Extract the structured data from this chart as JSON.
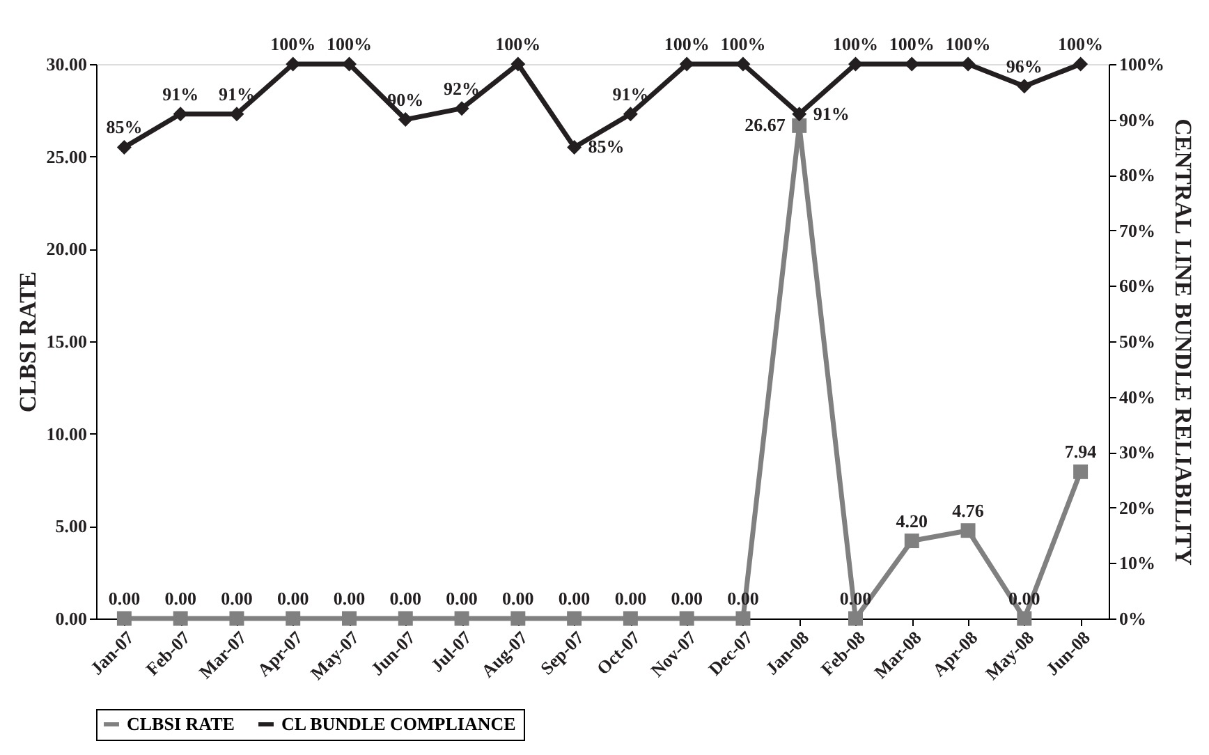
{
  "chart_data": {
    "type": "line",
    "xlabel": null,
    "ylabel": "CLBSI RATE",
    "y2label": "CENTRAL LINE BUNDLE RELIABILITY",
    "categories": [
      "Jan-07",
      "Feb-07",
      "Mar-07",
      "Apr-07",
      "May-07",
      "Jun-07",
      "Jul-07",
      "Aug-07",
      "Sep-07",
      "Oct-07",
      "Nov-07",
      "Dec-07",
      "Jan-08",
      "Feb-08",
      "Mar-08",
      "Apr-08",
      "May-08",
      "Jun-08"
    ],
    "series": [
      {
        "name": "CLBSI RATE",
        "color": "#808080",
        "marker": "square",
        "values": [
          0,
          0,
          0,
          0,
          0,
          0,
          0,
          0,
          0,
          0,
          0,
          0,
          26.67,
          0,
          4.2,
          4.76,
          0,
          7.94
        ],
        "value_labels": [
          "0.00",
          "0.00",
          "0.00",
          "0.00",
          "0.00",
          "0.00",
          "0.00",
          "0.00",
          "0.00",
          "0.00",
          "0.00",
          "0.00",
          "26.67",
          "0.00",
          "4.20",
          "4.76",
          "0.00",
          "7.94"
        ]
      },
      {
        "name": "CL BUNDLE COMPLIANCE",
        "color": "#231f20",
        "marker": "diamond",
        "axis": "y2",
        "values": [
          85,
          91,
          91,
          100,
          100,
          90,
          92,
          100,
          85,
          91,
          100,
          100,
          91,
          100,
          100,
          100,
          96,
          100
        ],
        "value_labels": [
          "85%",
          "91%",
          "91%",
          "100%",
          "100%",
          "90%",
          "92%",
          "100%",
          "85%",
          "91%",
          "100%",
          "100%",
          "91%",
          "100%",
          "100%",
          "100%",
          "96%",
          "100%"
        ]
      }
    ],
    "ylim": [
      0,
      30
    ],
    "yticks": [
      {
        "value": 0,
        "label": "0.00"
      },
      {
        "value": 5,
        "label": "5.00"
      },
      {
        "value": 10,
        "label": "10.00"
      },
      {
        "value": 15,
        "label": "15.00"
      },
      {
        "value": 20,
        "label": "20.00"
      },
      {
        "value": 25,
        "label": "25.00"
      },
      {
        "value": 30,
        "label": "30.00"
      }
    ],
    "y2lim": [
      0,
      100
    ],
    "y2ticks": [
      {
        "value": 0,
        "label": "0%"
      },
      {
        "value": 10,
        "label": "10%"
      },
      {
        "value": 20,
        "label": "20%"
      },
      {
        "value": 30,
        "label": "30%"
      },
      {
        "value": 40,
        "label": "40%"
      },
      {
        "value": 50,
        "label": "50%"
      },
      {
        "value": 60,
        "label": "60%"
      },
      {
        "value": 70,
        "label": "70%"
      },
      {
        "value": 80,
        "label": "80%"
      },
      {
        "value": 90,
        "label": "90%"
      },
      {
        "value": 100,
        "label": "100%"
      }
    ],
    "grid": false,
    "legend": "bottom",
    "line_style": "solid"
  }
}
